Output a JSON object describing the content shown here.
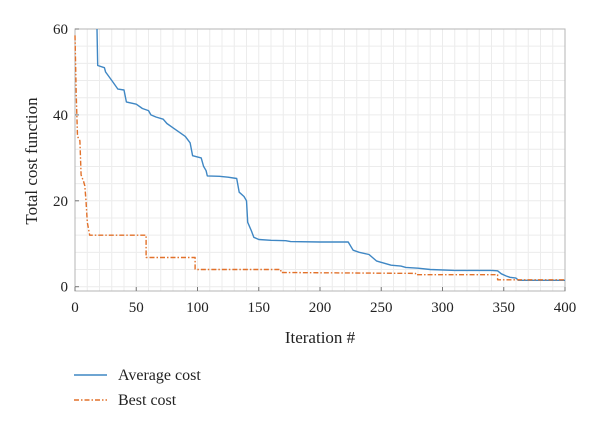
{
  "chart_data": {
    "type": "line",
    "xlabel": "Iteration #",
    "ylabel": "Total cost function",
    "xlim": [
      0,
      400
    ],
    "ylim": [
      -1,
      60
    ],
    "xticks": [
      0,
      50,
      100,
      150,
      200,
      250,
      300,
      350,
      400
    ],
    "yticks": [
      0,
      20,
      40,
      60
    ],
    "grid": true,
    "legend_position": "below",
    "series": [
      {
        "name": "Average cost",
        "color": "#3f87c4",
        "style": "solid",
        "points": [
          [
            18,
            60
          ],
          [
            18.5,
            51.5
          ],
          [
            24,
            51
          ],
          [
            25,
            50
          ],
          [
            30,
            48
          ],
          [
            35,
            46
          ],
          [
            40,
            45.8
          ],
          [
            42,
            43
          ],
          [
            50,
            42.5
          ],
          [
            55,
            41.5
          ],
          [
            60,
            41
          ],
          [
            62,
            40
          ],
          [
            66,
            39.5
          ],
          [
            72,
            39
          ],
          [
            75,
            38
          ],
          [
            80,
            37
          ],
          [
            85,
            36
          ],
          [
            90,
            35
          ],
          [
            94,
            33.5
          ],
          [
            96,
            30.5
          ],
          [
            103,
            30
          ],
          [
            105,
            28
          ],
          [
            107,
            27
          ],
          [
            108,
            25.8
          ],
          [
            118,
            25.7
          ],
          [
            125,
            25.5
          ],
          [
            132,
            25.2
          ],
          [
            134,
            22
          ],
          [
            138,
            21
          ],
          [
            140,
            20
          ],
          [
            141,
            15
          ],
          [
            144,
            13
          ],
          [
            146,
            11.5
          ],
          [
            150,
            11
          ],
          [
            160,
            10.8
          ],
          [
            172,
            10.7
          ],
          [
            176,
            10.5
          ],
          [
            200,
            10.4
          ],
          [
            223,
            10.4
          ],
          [
            227,
            8.5
          ],
          [
            232,
            8
          ],
          [
            240,
            7.5
          ],
          [
            246,
            6
          ],
          [
            252,
            5.5
          ],
          [
            258,
            5
          ],
          [
            266,
            4.8
          ],
          [
            270,
            4.5
          ],
          [
            280,
            4.3
          ],
          [
            290,
            4
          ],
          [
            310,
            3.8
          ],
          [
            340,
            3.8
          ],
          [
            345,
            3.7
          ],
          [
            348,
            3
          ],
          [
            352,
            2.5
          ],
          [
            355,
            2.2
          ],
          [
            360,
            2.0
          ],
          [
            362,
            1.5
          ],
          [
            400,
            1.5
          ]
        ]
      },
      {
        "name": "Best cost",
        "color": "#e2712a",
        "style": "dashdot",
        "points": [
          [
            0,
            58.5
          ],
          [
            1,
            45
          ],
          [
            2,
            35
          ],
          [
            4,
            34
          ],
          [
            5,
            26
          ],
          [
            7,
            24.5
          ],
          [
            8,
            23.5
          ],
          [
            9,
            20
          ],
          [
            10,
            15
          ],
          [
            12,
            12
          ],
          [
            58,
            12
          ],
          [
            58,
            6.8
          ],
          [
            98,
            6.8
          ],
          [
            98,
            4.1
          ],
          [
            100,
            4
          ],
          [
            168,
            4
          ],
          [
            168,
            3.3
          ],
          [
            278,
            3.1
          ],
          [
            278,
            2.8
          ],
          [
            345,
            2.8
          ],
          [
            345,
            1.6
          ],
          [
            400,
            1.6
          ]
        ]
      }
    ]
  }
}
